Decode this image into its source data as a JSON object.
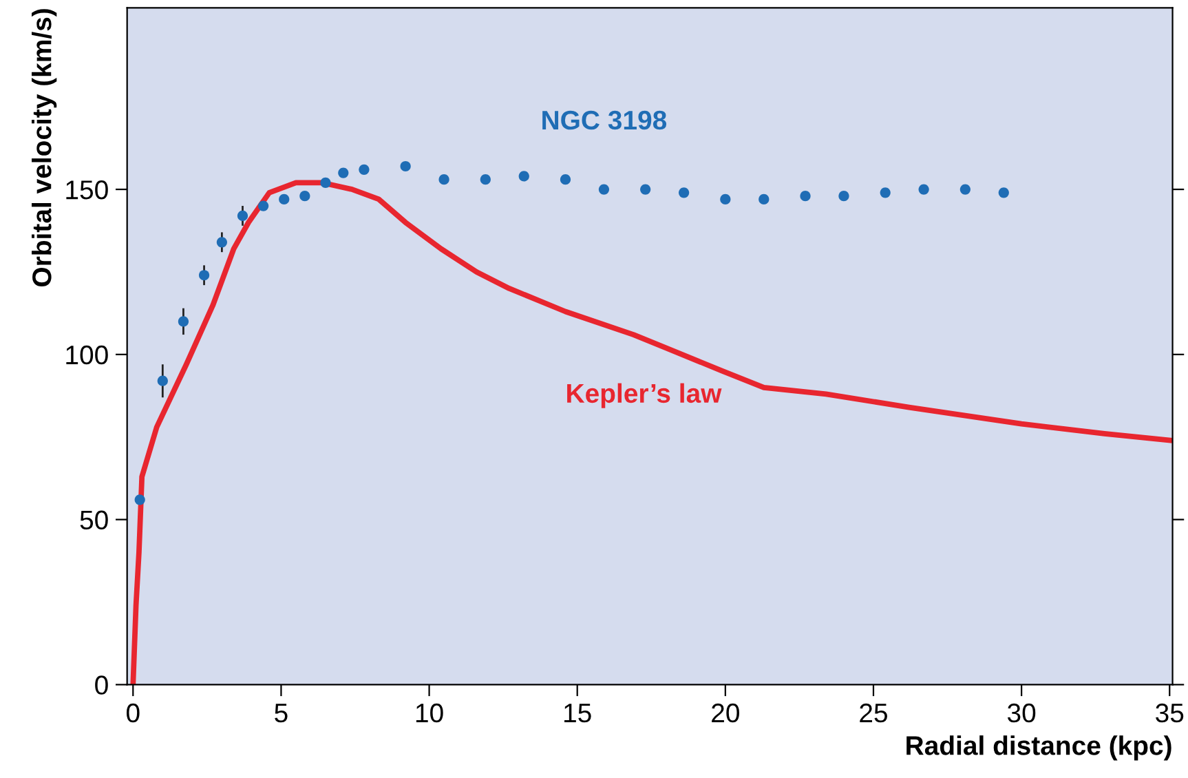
{
  "chart_data": {
    "type": "line",
    "xlabel": "Radial distance (kpc)",
    "ylabel": "Orbital velocity (km/s)",
    "xlim": [
      -0.2,
      35.1
    ],
    "ylim": [
      0,
      205
    ],
    "xticks": [
      0,
      5,
      10,
      15,
      20,
      25,
      30,
      35
    ],
    "yticks": [
      0,
      50,
      100,
      150
    ],
    "grid": false,
    "legend": false,
    "series": [
      {
        "name": "NGC 3198",
        "type": "scatter",
        "color": "#1f6db5",
        "marker": "circle",
        "x": [
          0.23,
          1.0,
          1.7,
          2.4,
          3.0,
          3.7,
          4.4,
          5.1,
          5.8,
          6.5,
          7.1,
          7.8,
          9.2,
          10.5,
          11.9,
          13.2,
          14.6,
          15.9,
          17.3,
          18.6,
          20.0,
          21.3,
          22.7,
          24.0,
          25.4,
          26.7,
          28.1,
          29.4
        ],
        "values": [
          56,
          92,
          110,
          124,
          134,
          142,
          145,
          147,
          148,
          152,
          155,
          156,
          157,
          153,
          153,
          154,
          153,
          150,
          150,
          149,
          147,
          147,
          148,
          148,
          149,
          150,
          150,
          149
        ],
        "errors": [
          null,
          5,
          4,
          3,
          3,
          3,
          null,
          null,
          null,
          null,
          null,
          null,
          null,
          null,
          null,
          null,
          null,
          null,
          null,
          null,
          null,
          null,
          null,
          null,
          null,
          null,
          null,
          null
        ]
      },
      {
        "name": "Kepler’s law",
        "color": "#e8262f",
        "line_style": "solid",
        "x": [
          0,
          0.1,
          0.2,
          0.3,
          0.8,
          1.8,
          2.7,
          3.4,
          3.9,
          4.6,
          5.5,
          6.4,
          7.4,
          8.3,
          9.2,
          10.4,
          11.6,
          12.7,
          14.6,
          16.9,
          19.9,
          21.3,
          23.4,
          26.2,
          30,
          32.8,
          35
        ],
        "values": [
          0,
          24,
          40,
          63,
          78,
          97,
          115,
          132,
          140,
          149,
          152,
          152,
          150,
          147,
          140,
          132,
          125,
          120,
          113,
          106,
          95,
          90,
          88,
          84,
          79,
          76,
          74
        ]
      }
    ]
  }
}
